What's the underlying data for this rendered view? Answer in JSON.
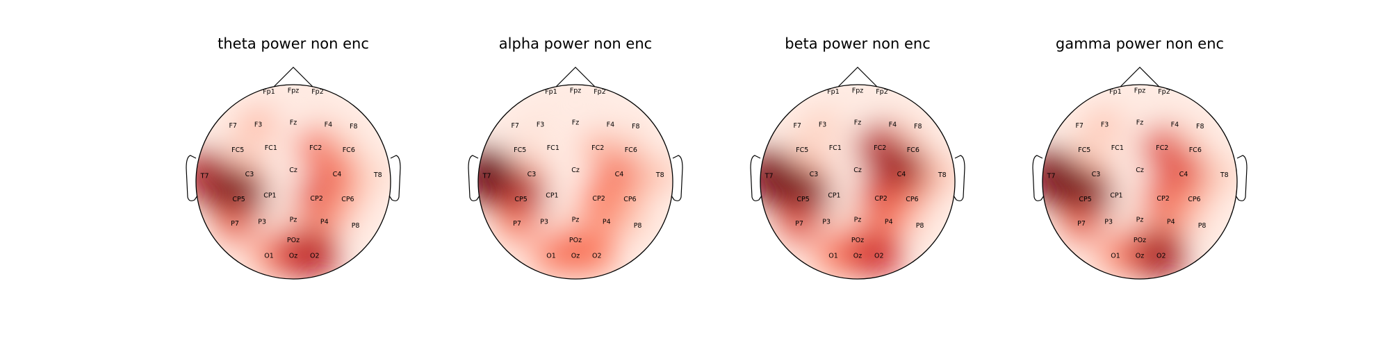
{
  "chart_data": [
    {
      "type": "heatmap",
      "subtype": "topomap",
      "title": "theta power non enc",
      "colormap": "Reds",
      "electrodes": [
        "Fp1",
        "Fpz",
        "Fp2",
        "F7",
        "F3",
        "Fz",
        "F4",
        "F8",
        "FC5",
        "FC1",
        "FC2",
        "FC6",
        "T7",
        "C3",
        "Cz",
        "C4",
        "T8",
        "CP5",
        "CP1",
        "CP2",
        "CP6",
        "P7",
        "P3",
        "Pz",
        "P4",
        "P8",
        "POz",
        "O1",
        "Oz",
        "O2"
      ],
      "values": [
        0.08,
        0.06,
        0.08,
        0.1,
        0.35,
        0.05,
        0.12,
        0.08,
        0.18,
        0.06,
        0.55,
        0.22,
        0.85,
        0.35,
        0.05,
        0.55,
        0.2,
        1.0,
        0.1,
        0.65,
        0.35,
        0.55,
        0.1,
        0.08,
        0.45,
        0.1,
        0.35,
        0.45,
        0.7,
        0.8
      ]
    },
    {
      "type": "heatmap",
      "subtype": "topomap",
      "title": "alpha power non enc",
      "colormap": "Reds",
      "electrodes": [
        "Fp1",
        "Fpz",
        "Fp2",
        "F7",
        "F3",
        "Fz",
        "F4",
        "F8",
        "FC5",
        "FC1",
        "FC2",
        "FC6",
        "T7",
        "C3",
        "Cz",
        "C4",
        "T8",
        "CP5",
        "CP1",
        "CP2",
        "CP6",
        "P7",
        "P3",
        "Pz",
        "P4",
        "P8",
        "POz",
        "O1",
        "Oz",
        "O2"
      ],
      "values": [
        0.06,
        0.06,
        0.06,
        0.08,
        0.12,
        0.05,
        0.08,
        0.08,
        0.12,
        0.05,
        0.35,
        0.25,
        1.0,
        0.35,
        0.04,
        0.55,
        0.3,
        0.85,
        0.06,
        0.5,
        0.35,
        0.5,
        0.1,
        0.1,
        0.45,
        0.2,
        0.4,
        0.5,
        0.55,
        0.5
      ]
    },
    {
      "type": "heatmap",
      "subtype": "topomap",
      "title": "beta power non enc",
      "colormap": "Reds",
      "electrodes": [
        "Fp1",
        "Fpz",
        "Fp2",
        "F7",
        "F3",
        "Fz",
        "F4",
        "F8",
        "FC5",
        "FC1",
        "FC2",
        "FC6",
        "T7",
        "C3",
        "Cz",
        "C4",
        "T8",
        "CP5",
        "CP1",
        "CP2",
        "CP6",
        "P7",
        "P3",
        "Pz",
        "P4",
        "P8",
        "POz",
        "O1",
        "Oz",
        "O2"
      ],
      "values": [
        0.06,
        0.06,
        0.06,
        0.1,
        0.25,
        0.05,
        0.15,
        0.1,
        0.2,
        0.08,
        0.8,
        0.3,
        0.95,
        0.35,
        0.06,
        0.9,
        0.3,
        1.0,
        0.1,
        0.7,
        0.4,
        0.6,
        0.12,
        0.1,
        0.5,
        0.15,
        0.4,
        0.5,
        0.6,
        0.75
      ]
    },
    {
      "type": "heatmap",
      "subtype": "topomap",
      "title": "gamma power non enc",
      "colormap": "Reds",
      "electrodes": [
        "Fp1",
        "Fpz",
        "Fp2",
        "F7",
        "F3",
        "Fz",
        "F4",
        "F8",
        "FC5",
        "FC1",
        "FC2",
        "FC6",
        "T7",
        "C3",
        "Cz",
        "C4",
        "T8",
        "CP5",
        "CP1",
        "CP2",
        "CP6",
        "P7",
        "P3",
        "Pz",
        "P4",
        "P8",
        "POz",
        "O1",
        "Oz",
        "O2"
      ],
      "values": [
        0.06,
        0.06,
        0.06,
        0.1,
        0.3,
        0.05,
        0.12,
        0.08,
        0.2,
        0.06,
        0.65,
        0.25,
        0.95,
        0.35,
        0.05,
        0.65,
        0.25,
        1.0,
        0.1,
        0.6,
        0.35,
        0.55,
        0.1,
        0.08,
        0.45,
        0.12,
        0.35,
        0.45,
        0.6,
        0.85
      ]
    }
  ]
}
